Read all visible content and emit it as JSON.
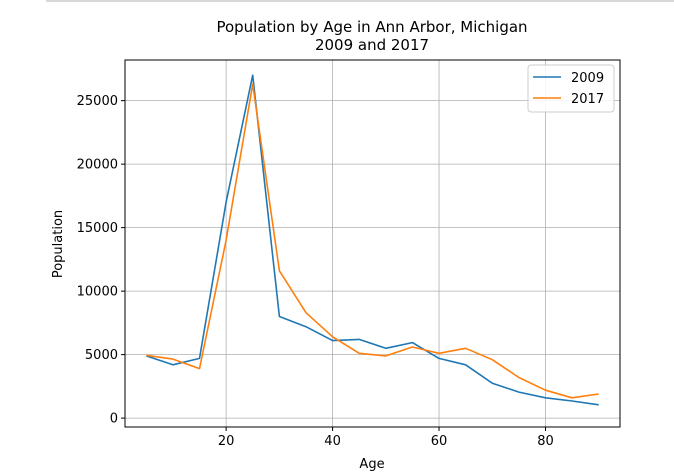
{
  "chart_data": {
    "type": "line",
    "title": "Population by Age in Ann Arbor, Michigan",
    "subtitle": "2009 and 2017",
    "xlabel": "Age",
    "ylabel": "Population",
    "xlim": [
      1,
      94
    ],
    "ylim": [
      -700,
      28200
    ],
    "x_ticks": [
      20,
      40,
      60,
      80
    ],
    "y_ticks": [
      0,
      5000,
      10000,
      15000,
      20000,
      25000
    ],
    "grid": true,
    "legend_position": "top-right",
    "x": [
      5,
      10,
      15,
      20,
      25,
      30,
      35,
      40,
      45,
      50,
      55,
      60,
      65,
      70,
      75,
      80,
      85,
      90
    ],
    "series": [
      {
        "name": "2009",
        "color": "#1f77b4",
        "values": [
          4900,
          4200,
          4700,
          17000,
          27000,
          8000,
          7200,
          6100,
          6200,
          5500,
          5950,
          4700,
          4200,
          2750,
          2050,
          1600,
          1350,
          1050
        ]
      },
      {
        "name": "2017",
        "color": "#ff7f0e",
        "values": [
          4950,
          4650,
          3900,
          14000,
          26300,
          11600,
          8300,
          6400,
          5100,
          4900,
          5600,
          5100,
          5500,
          4600,
          3200,
          2200,
          1600,
          1900
        ]
      }
    ]
  }
}
